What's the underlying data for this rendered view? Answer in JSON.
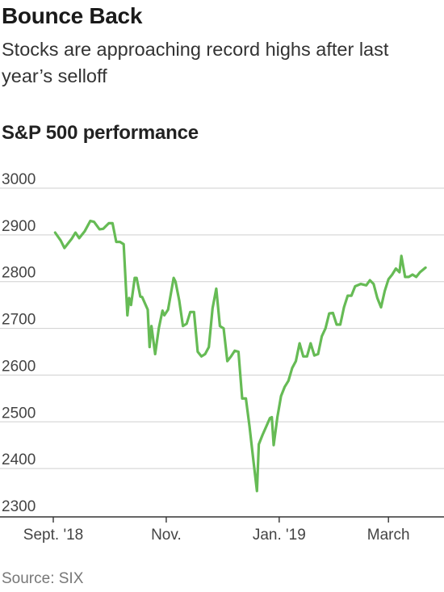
{
  "title": "Bounce Back",
  "subtitle": "Stocks are approaching record highs after last year’s selloff",
  "source": "Source: SIX",
  "colors": {
    "line": "#66bb55",
    "grid": "#cfcfcf",
    "axis": "#333333",
    "tick_text": "#444444"
  },
  "chart_data": {
    "type": "line",
    "title": "S&P 500 performance",
    "xlabel": "",
    "ylabel": "",
    "ylim": [
      2300,
      3000
    ],
    "yticks": [
      3000,
      2900,
      2800,
      2700,
      2600,
      2500,
      2400,
      2300
    ],
    "xticks": [
      {
        "label": "Sept. '18",
        "date": "2018-09-01"
      },
      {
        "label": "Nov.",
        "date": "2018-11-01"
      },
      {
        "label": "Jan. '19",
        "date": "2019-01-01"
      },
      {
        "label": "March",
        "date": "2019-03-01"
      }
    ],
    "xlim": [
      "2018-09-01",
      "2019-03-31"
    ],
    "grid": true,
    "series": [
      {
        "values": [
          [
            "2018-09-02",
            2905
          ],
          [
            "2018-09-05",
            2888
          ],
          [
            "2018-09-07",
            2872
          ],
          [
            "2018-09-11",
            2892
          ],
          [
            "2018-09-13",
            2905
          ],
          [
            "2018-09-15",
            2893
          ],
          [
            "2018-09-18",
            2908
          ],
          [
            "2018-09-21",
            2930
          ],
          [
            "2018-09-23",
            2928
          ],
          [
            "2018-09-26",
            2912
          ],
          [
            "2018-09-28",
            2913
          ],
          [
            "2018-10-01",
            2925
          ],
          [
            "2018-10-03",
            2925
          ],
          [
            "2018-10-05",
            2885
          ],
          [
            "2018-10-07",
            2885
          ],
          [
            "2018-10-09",
            2880
          ],
          [
            "2018-10-11",
            2728
          ],
          [
            "2018-10-12",
            2765
          ],
          [
            "2018-10-13",
            2750
          ],
          [
            "2018-10-15",
            2808
          ],
          [
            "2018-10-16",
            2808
          ],
          [
            "2018-10-18",
            2768
          ],
          [
            "2018-10-19",
            2767
          ],
          [
            "2018-10-22",
            2740
          ],
          [
            "2018-10-23",
            2660
          ],
          [
            "2018-10-24",
            2705
          ],
          [
            "2018-10-26",
            2645
          ],
          [
            "2018-10-28",
            2700
          ],
          [
            "2018-10-30",
            2738
          ],
          [
            "2018-10-31",
            2728
          ],
          [
            "2018-11-02",
            2740
          ],
          [
            "2018-11-05",
            2808
          ],
          [
            "2018-11-06",
            2800
          ],
          [
            "2018-11-08",
            2760
          ],
          [
            "2018-11-10",
            2705
          ],
          [
            "2018-11-12",
            2710
          ],
          [
            "2018-11-14",
            2735
          ],
          [
            "2018-11-16",
            2735
          ],
          [
            "2018-11-18",
            2650
          ],
          [
            "2018-11-20",
            2640
          ],
          [
            "2018-11-22",
            2645
          ],
          [
            "2018-11-24",
            2660
          ],
          [
            "2018-11-26",
            2743
          ],
          [
            "2018-11-28",
            2785
          ],
          [
            "2018-11-30",
            2705
          ],
          [
            "2018-12-02",
            2700
          ],
          [
            "2018-12-04",
            2630
          ],
          [
            "2018-12-06",
            2640
          ],
          [
            "2018-12-08",
            2652
          ],
          [
            "2018-12-10",
            2650
          ],
          [
            "2018-12-12",
            2550
          ],
          [
            "2018-12-14",
            2550
          ],
          [
            "2018-12-16",
            2490
          ],
          [
            "2018-12-18",
            2420
          ],
          [
            "2018-12-20",
            2352
          ],
          [
            "2018-12-21",
            2452
          ],
          [
            "2018-12-23",
            2472
          ],
          [
            "2018-12-25",
            2490
          ],
          [
            "2018-12-27",
            2508
          ],
          [
            "2018-12-28",
            2510
          ],
          [
            "2018-12-29",
            2450
          ],
          [
            "2018-12-31",
            2510
          ],
          [
            "2019-01-02",
            2555
          ],
          [
            "2019-01-04",
            2575
          ],
          [
            "2019-01-06",
            2588
          ],
          [
            "2019-01-08",
            2615
          ],
          [
            "2019-01-10",
            2630
          ],
          [
            "2019-01-12",
            2668
          ],
          [
            "2019-01-14",
            2640
          ],
          [
            "2019-01-16",
            2640
          ],
          [
            "2019-01-18",
            2668
          ],
          [
            "2019-01-20",
            2642
          ],
          [
            "2019-01-22",
            2645
          ],
          [
            "2019-01-24",
            2683
          ],
          [
            "2019-01-26",
            2700
          ],
          [
            "2019-01-28",
            2732
          ],
          [
            "2019-01-30",
            2733
          ],
          [
            "2019-02-01",
            2708
          ],
          [
            "2019-02-03",
            2708
          ],
          [
            "2019-02-05",
            2745
          ],
          [
            "2019-02-07",
            2770
          ],
          [
            "2019-02-09",
            2770
          ],
          [
            "2019-02-11",
            2790
          ],
          [
            "2019-02-14",
            2795
          ],
          [
            "2019-02-17",
            2792
          ],
          [
            "2019-02-19",
            2803
          ],
          [
            "2019-02-21",
            2795
          ],
          [
            "2019-02-23",
            2765
          ],
          [
            "2019-02-25",
            2745
          ],
          [
            "2019-02-27",
            2780
          ],
          [
            "2019-03-01",
            2805
          ],
          [
            "2019-03-03",
            2815
          ],
          [
            "2019-03-05",
            2828
          ],
          [
            "2019-03-07",
            2820
          ],
          [
            "2019-03-08",
            2855
          ],
          [
            "2019-03-10",
            2810
          ],
          [
            "2019-03-12",
            2810
          ],
          [
            "2019-03-14",
            2815
          ],
          [
            "2019-03-16",
            2810
          ],
          [
            "2019-03-18",
            2820
          ],
          [
            "2019-03-21",
            2830
          ]
        ]
      }
    ]
  }
}
